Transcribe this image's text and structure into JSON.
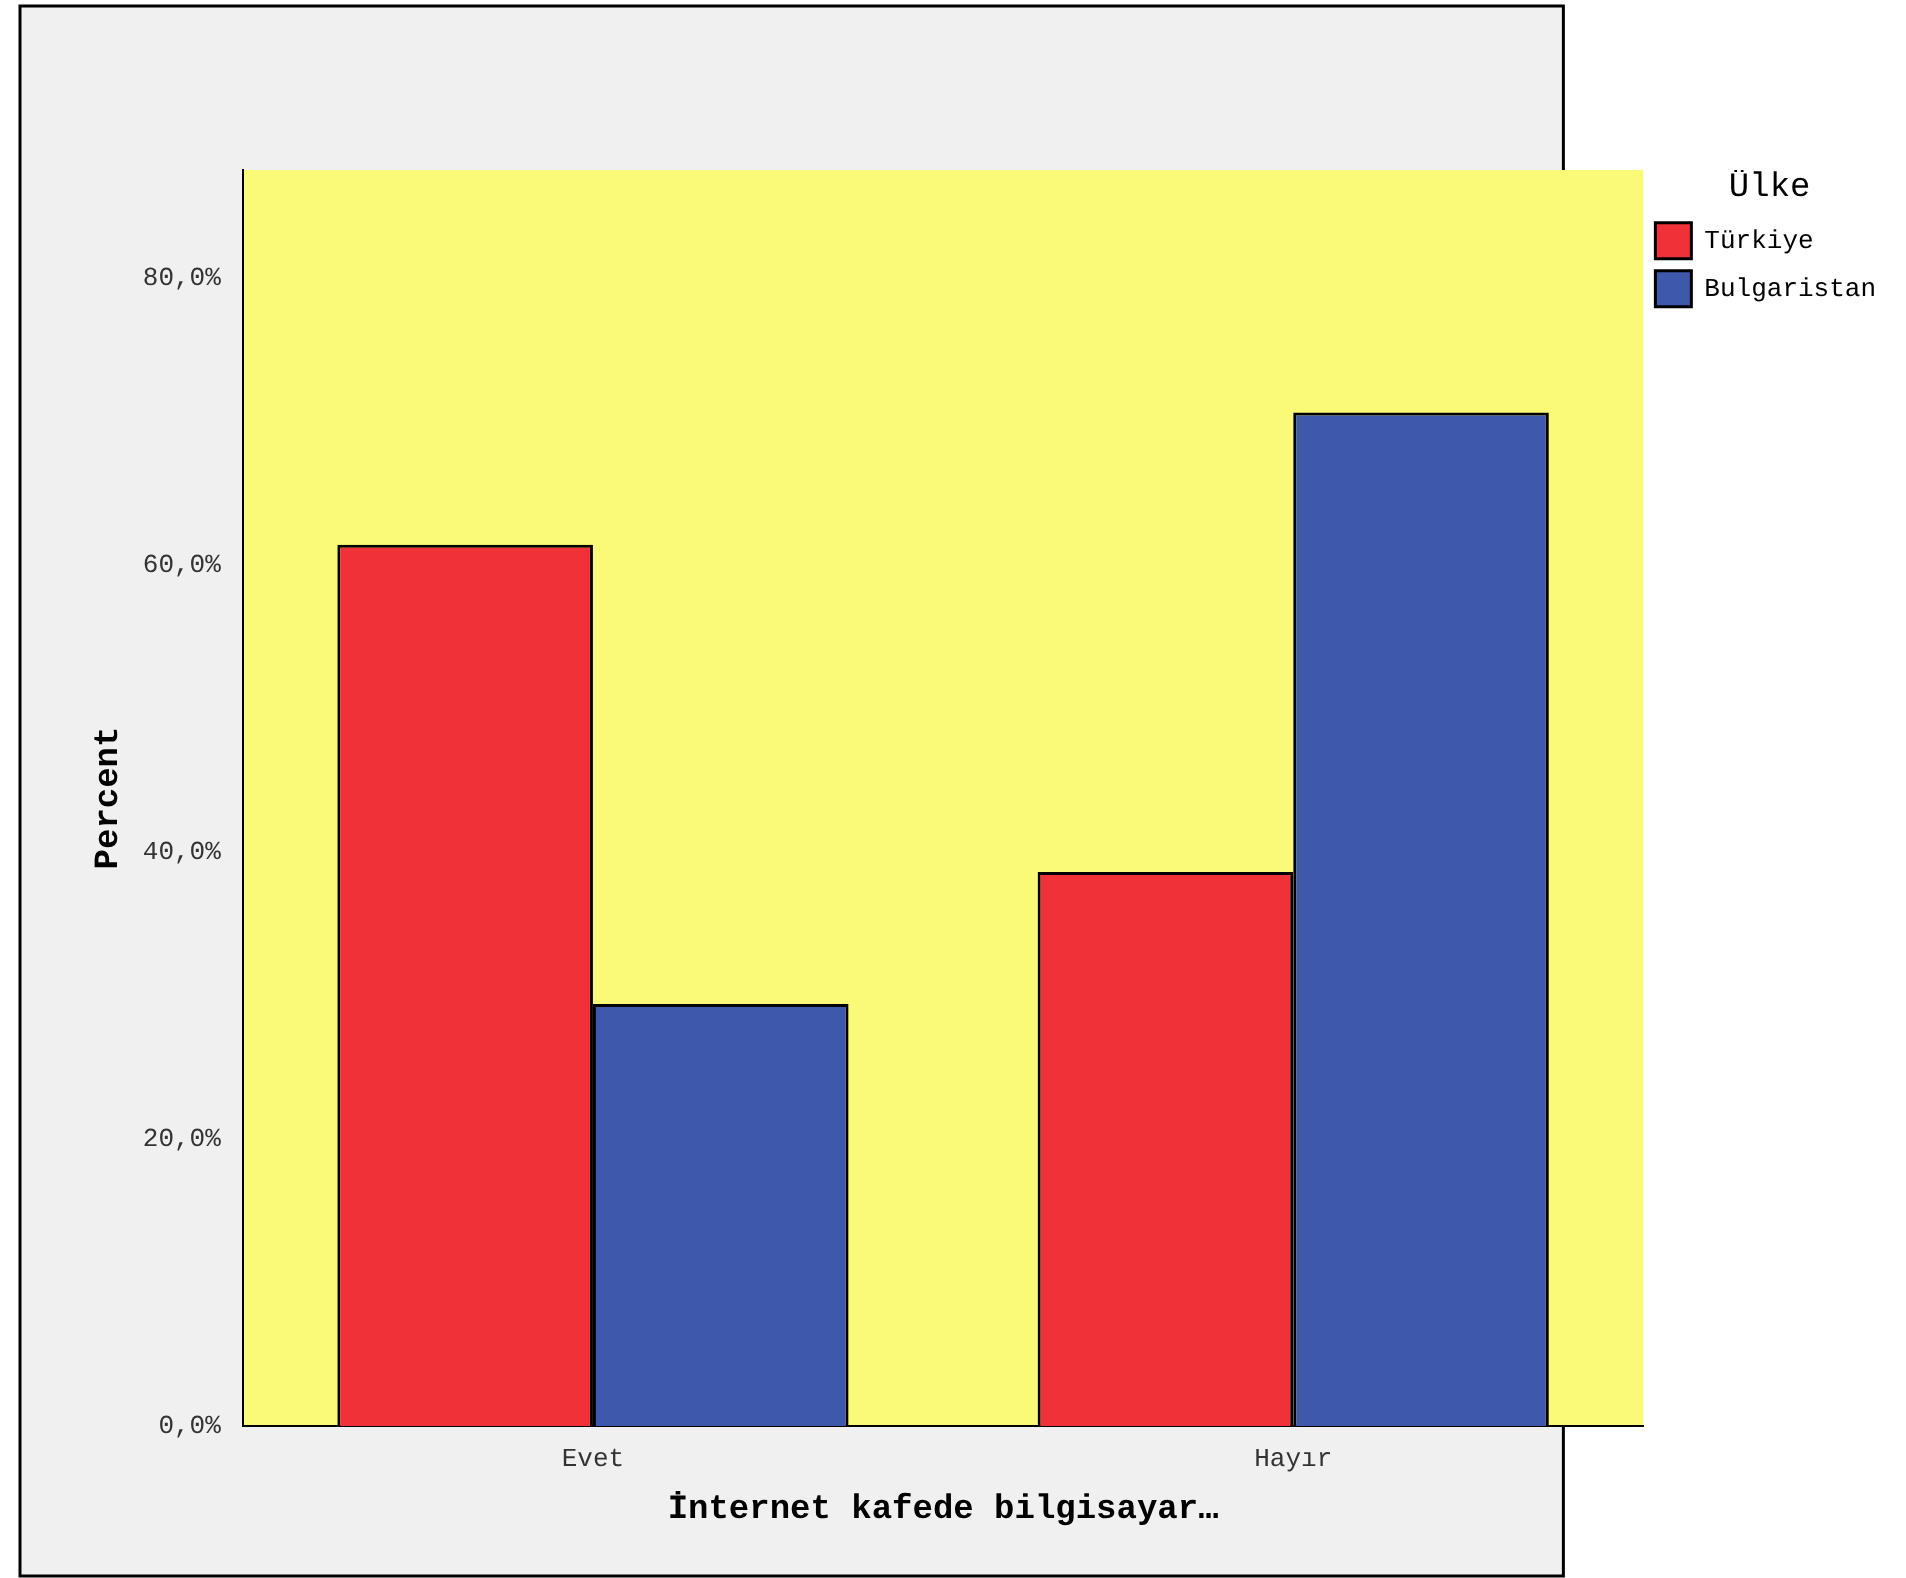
{
  "chart_data": {
    "type": "bar",
    "xlabel": "İnternet kafede bilgisayar…",
    "ylabel": "Percent",
    "legend_title": "Ülke",
    "categories": [
      "Evet",
      "Hayır"
    ],
    "series": [
      {
        "name": "Türkiye",
        "color": "#f03238",
        "values": [
          61.4,
          38.6
        ]
      },
      {
        "name": "Bulgaristan",
        "color": "#3e58ac",
        "values": [
          29.4,
          70.6
        ]
      }
    ],
    "ylim": [
      0,
      87.5
    ],
    "yticks": [
      {
        "value": 0,
        "label": "0,0%"
      },
      {
        "value": 20,
        "label": "20,0%"
      },
      {
        "value": 40,
        "label": "40,0%"
      },
      {
        "value": 60,
        "label": "60,0%"
      },
      {
        "value": 80,
        "label": "80,0%"
      }
    ],
    "grid": false,
    "legend": "top right"
  }
}
